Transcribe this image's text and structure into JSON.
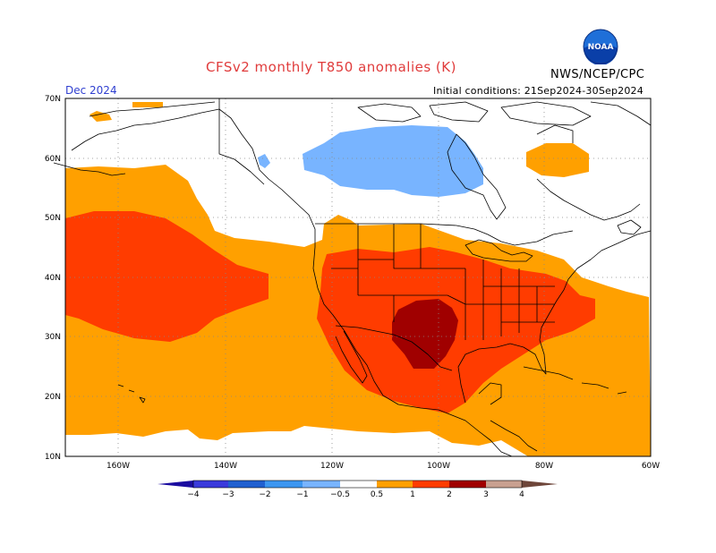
{
  "header": {
    "title": "CFSv2 monthly T850 anomalies (K)",
    "valid_month": "Dec 2024",
    "agency": "NWS/NCEP/CPC",
    "initial_conditions": "Initial conditions: 21Sep2024-30Sep2024",
    "logo_text": "NOAA"
  },
  "colors": {
    "title": "#e03c3c",
    "valid_month": "#2f3fd0",
    "a_0_5_1": "#ffa000",
    "a_1_2": "#ff3c00",
    "a_2_3": "#a00000",
    "a_m0_5_m1": "#78b4ff",
    "land_outline": "#000000"
  },
  "map": {
    "lat_labels": [
      "70N",
      "60N",
      "50N",
      "40N",
      "30N",
      "20N",
      "10N"
    ],
    "lon_labels": [
      "160W",
      "140W",
      "120W",
      "100W",
      "80W",
      "60W"
    ]
  },
  "colorbar": {
    "colors": [
      "#1a0ca0",
      "#3a3adc",
      "#2060d0",
      "#3c96f0",
      "#78b4ff",
      "#ffffff",
      "#ffa000",
      "#ff3c00",
      "#a00000",
      "#c8a090",
      "#6e463a"
    ],
    "labels": [
      "−4",
      "−3",
      "−2",
      "−1",
      "−0.5",
      "0.5",
      "1",
      "2",
      "3",
      "4"
    ]
  }
}
